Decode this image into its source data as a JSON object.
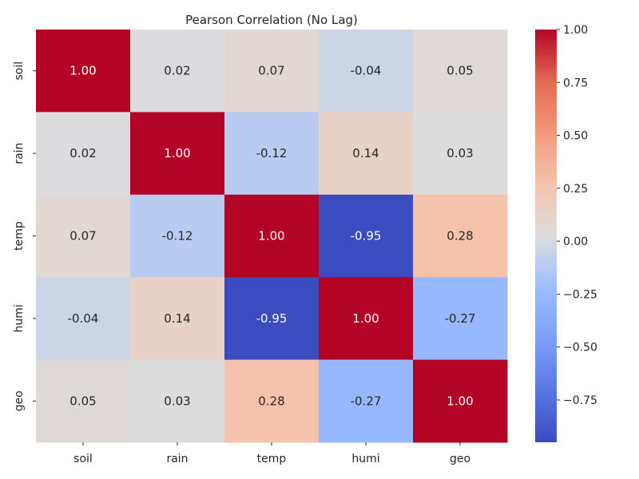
{
  "chart_data": {
    "type": "heatmap",
    "title": "Pearson Correlation (No Lag)",
    "xlabel": "",
    "ylabel": "",
    "x_categories": [
      "soil",
      "rain",
      "temp",
      "humi",
      "geo"
    ],
    "y_categories": [
      "soil",
      "rain",
      "temp",
      "humi",
      "geo"
    ],
    "values": [
      [
        1.0,
        0.02,
        0.07,
        -0.04,
        0.05
      ],
      [
        0.02,
        1.0,
        -0.12,
        0.14,
        0.03
      ],
      [
        0.07,
        -0.12,
        1.0,
        -0.95,
        0.28
      ],
      [
        -0.04,
        0.14,
        -0.95,
        1.0,
        -0.27
      ],
      [
        0.05,
        0.03,
        0.28,
        -0.27,
        1.0
      ]
    ],
    "cell_labels": [
      [
        "1.00",
        "0.02",
        "0.07",
        "-0.04",
        "0.05"
      ],
      [
        "0.02",
        "1.00",
        "-0.12",
        "0.14",
        "0.03"
      ],
      [
        "0.07",
        "-0.12",
        "1.00",
        "-0.95",
        "0.28"
      ],
      [
        "-0.04",
        "0.14",
        "-0.95",
        "1.00",
        "-0.27"
      ],
      [
        "0.05",
        "0.03",
        "0.28",
        "-0.27",
        "1.00"
      ]
    ],
    "colormap": "coolwarm",
    "vmin": -0.95,
    "vmax": 1.0,
    "colorbar": {
      "ticks": [
        1.0,
        0.75,
        0.5,
        0.25,
        0.0,
        -0.25,
        -0.5,
        -0.75
      ],
      "tick_labels": [
        "1.00",
        "0.75",
        "0.50",
        "0.25",
        "0.00",
        "−0.25",
        "−0.50",
        "−0.75"
      ],
      "placement": "right"
    },
    "grid": false
  }
}
